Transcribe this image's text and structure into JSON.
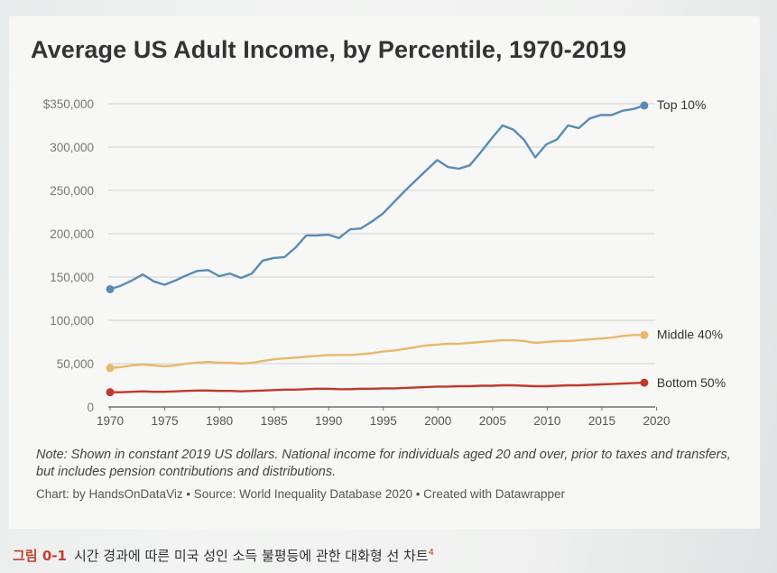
{
  "caption": {
    "label": "그림 0-1",
    "text": "시간 경과에 따른 미국 성인 소득 불평등에 관한 대화형 선 차트",
    "footnote": "4"
  },
  "chart_data": {
    "type": "line",
    "title": "Average US Adult Income, by Percentile, 1970-2019",
    "xlabel": "",
    "ylabel": "",
    "xlim": [
      1970,
      2020
    ],
    "ylim": [
      0,
      350000
    ],
    "x_ticks": [
      1970,
      1975,
      1980,
      1985,
      1990,
      1995,
      2000,
      2005,
      2010,
      2015,
      2020
    ],
    "x_tick_labels": [
      "1970",
      "1975",
      "1980",
      "1985",
      "1990",
      "1995",
      "2000",
      "2005",
      "2010",
      "2015",
      "2020"
    ],
    "y_ticks": [
      0,
      50000,
      100000,
      150000,
      200000,
      250000,
      300000,
      350000
    ],
    "y_tick_labels": [
      "0",
      "50,000",
      "100,000",
      "150,000",
      "200,000",
      "250,000",
      "300,000",
      "$350,000"
    ],
    "grid": true,
    "legend": "direct labels at line ends",
    "x": [
      1970,
      1971,
      1972,
      1973,
      1974,
      1975,
      1976,
      1977,
      1978,
      1979,
      1980,
      1981,
      1982,
      1983,
      1984,
      1985,
      1986,
      1987,
      1988,
      1989,
      1990,
      1991,
      1992,
      1993,
      1994,
      1995,
      1996,
      1997,
      1998,
      1999,
      2000,
      2001,
      2002,
      2003,
      2004,
      2005,
      2006,
      2007,
      2008,
      2009,
      2010,
      2011,
      2012,
      2013,
      2014,
      2015,
      2016,
      2017,
      2018,
      2019
    ],
    "series": [
      {
        "name": "Top 10%",
        "color": "#5b8bb5",
        "values": [
          136000,
          140000,
          146000,
          153000,
          145000,
          141000,
          146000,
          152000,
          157000,
          158000,
          151000,
          154000,
          149000,
          154000,
          169000,
          172000,
          173000,
          184000,
          198000,
          198000,
          199000,
          195000,
          205000,
          206000,
          214000,
          223000,
          236000,
          249000,
          261000,
          273000,
          285000,
          277000,
          275000,
          279000,
          294000,
          310000,
          325000,
          320000,
          308000,
          288000,
          303000,
          309000,
          325000,
          322000,
          333000,
          337000,
          337000,
          342000,
          344000,
          348000
        ]
      },
      {
        "name": "Middle 40%",
        "color": "#e9b86b",
        "values": [
          45000,
          46000,
          48000,
          49000,
          48000,
          47000,
          48000,
          50000,
          51000,
          52000,
          51000,
          51000,
          50000,
          51000,
          53000,
          55000,
          56000,
          57000,
          58000,
          59000,
          60000,
          60000,
          60000,
          61000,
          62000,
          64000,
          65000,
          67000,
          69000,
          71000,
          72000,
          73000,
          73000,
          74000,
          75000,
          76000,
          77000,
          77000,
          76000,
          74000,
          75000,
          76000,
          76000,
          77000,
          78000,
          79000,
          80000,
          82000,
          83000,
          83000
        ]
      },
      {
        "name": "Bottom 50%",
        "color": "#c0392b",
        "values": [
          17000,
          17000,
          17500,
          18000,
          17500,
          17500,
          18000,
          18500,
          19000,
          19000,
          18500,
          18500,
          18000,
          18500,
          19000,
          19500,
          20000,
          20000,
          20500,
          21000,
          21000,
          20500,
          20500,
          21000,
          21000,
          21500,
          21500,
          22000,
          22500,
          23000,
          23500,
          23500,
          24000,
          24000,
          24500,
          24500,
          25000,
          25000,
          24500,
          24000,
          24000,
          24500,
          25000,
          25000,
          25500,
          26000,
          26500,
          27000,
          27500,
          28000
        ]
      }
    ],
    "note": "Note: Shown in constant 2019 US dollars. National income for individuals aged 20 and over, prior to taxes and transfers, but includes pension contributions and distributions.",
    "credit": "Chart: by HandsOnDataViz • Source: World Inequality Database 2020 • Created with Datawrapper"
  }
}
